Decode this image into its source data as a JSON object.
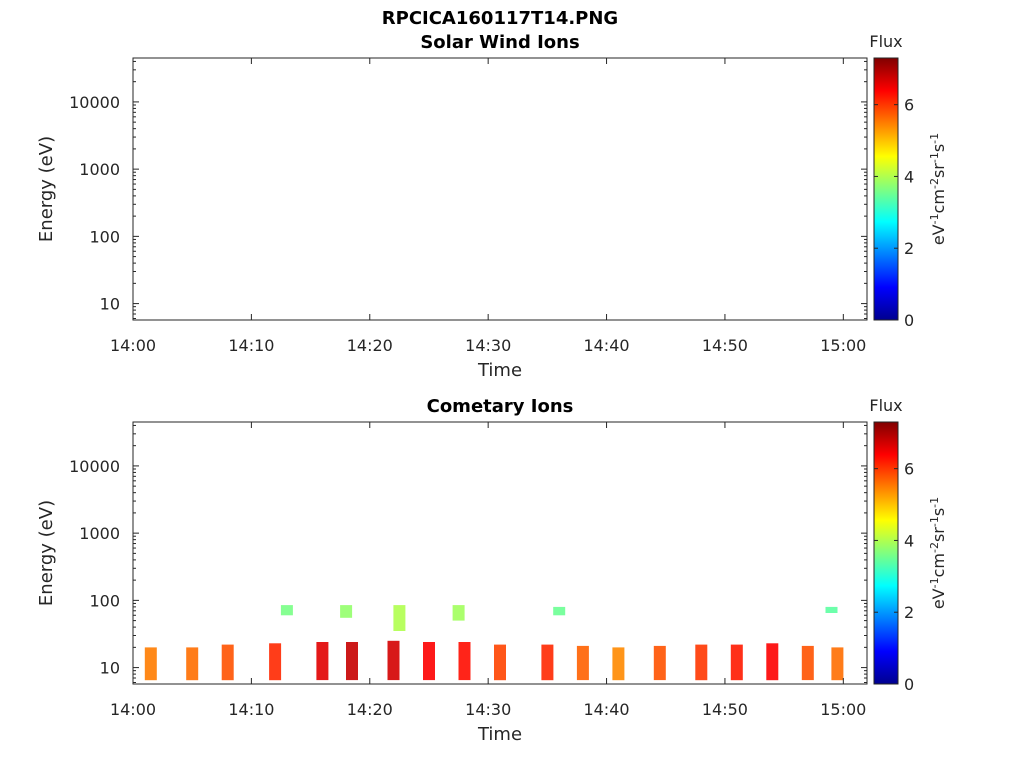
{
  "figure": {
    "title": "RPCICA160117T14.PNG"
  },
  "colors": {
    "low": "#00008f",
    "high": "#800000",
    "axis": "#262626"
  },
  "chart_data": [
    {
      "type": "heatmap",
      "title": "Solar Wind Ions",
      "xlabel": "Time",
      "ylabel": "Energy (eV)",
      "y_scale": "log",
      "xlim": [
        "14:00",
        "15:02"
      ],
      "ylim": [
        5.7,
        45000
      ],
      "x_ticks": [
        "14:00",
        "14:10",
        "14:20",
        "14:30",
        "14:40",
        "14:50",
        "15:00"
      ],
      "y_ticks": [
        "10",
        "100",
        "1000",
        "10000"
      ],
      "colorbar": {
        "title": "Flux",
        "label_parts": [
          "eV",
          "-1",
          "cm",
          "-2",
          "sr",
          "-1",
          "s",
          "-1"
        ],
        "ticks": [
          "0",
          "2",
          "4",
          "6"
        ],
        "range": [
          0,
          7.3
        ]
      },
      "observations": []
    },
    {
      "type": "heatmap",
      "title": "Cometary Ions",
      "xlabel": "Time",
      "ylabel": "Energy (eV)",
      "y_scale": "log",
      "xlim": [
        "14:00",
        "15:02"
      ],
      "ylim": [
        5.7,
        45000
      ],
      "x_ticks": [
        "14:00",
        "14:10",
        "14:20",
        "14:30",
        "14:40",
        "14:50",
        "15:00"
      ],
      "y_ticks": [
        "10",
        "100",
        "1000",
        "10000"
      ],
      "colorbar": {
        "title": "Flux",
        "label_parts": [
          "eV",
          "-1",
          "cm",
          "-2",
          "sr",
          "-1",
          "s",
          "-1"
        ],
        "ticks": [
          "0",
          "2",
          "4",
          "6"
        ],
        "range": [
          0,
          7.3
        ]
      },
      "observations": [
        {
          "time": "14:01:30",
          "energy_range": [
            6.5,
            20
          ],
          "flux": 5.5
        },
        {
          "time": "14:05:00",
          "energy_range": [
            6.5,
            20
          ],
          "flux": 5.6
        },
        {
          "time": "14:08:00",
          "energy_range": [
            6.5,
            22
          ],
          "flux": 5.8
        },
        {
          "time": "14:12:00",
          "energy_range": [
            6.5,
            23
          ],
          "flux": 6.1
        },
        {
          "time": "14:16:00",
          "energy_range": [
            6.5,
            24
          ],
          "flux": 6.6
        },
        {
          "time": "14:18:30",
          "energy_range": [
            6.5,
            24
          ],
          "flux": 6.8
        },
        {
          "time": "14:22:00",
          "energy_range": [
            6.5,
            25
          ],
          "flux": 6.7
        },
        {
          "time": "14:25:00",
          "energy_range": [
            6.5,
            24
          ],
          "flux": 6.4
        },
        {
          "time": "14:28:00",
          "energy_range": [
            6.5,
            24
          ],
          "flux": 6.3
        },
        {
          "time": "14:31:00",
          "energy_range": [
            6.5,
            22
          ],
          "flux": 5.9
        },
        {
          "time": "14:35:00",
          "energy_range": [
            6.5,
            22
          ],
          "flux": 6.1
        },
        {
          "time": "14:38:00",
          "energy_range": [
            6.5,
            21
          ],
          "flux": 5.7
        },
        {
          "time": "14:41:00",
          "energy_range": [
            6.5,
            20
          ],
          "flux": 5.4
        },
        {
          "time": "14:44:30",
          "energy_range": [
            6.5,
            21
          ],
          "flux": 5.8
        },
        {
          "time": "14:48:00",
          "energy_range": [
            6.5,
            22
          ],
          "flux": 6.0
        },
        {
          "time": "14:51:00",
          "energy_range": [
            6.5,
            22
          ],
          "flux": 6.2
        },
        {
          "time": "14:54:00",
          "energy_range": [
            6.5,
            23
          ],
          "flux": 6.4
        },
        {
          "time": "14:57:00",
          "energy_range": [
            6.5,
            21
          ],
          "flux": 5.8
        },
        {
          "time": "14:59:30",
          "energy_range": [
            6.5,
            20
          ],
          "flux": 5.6
        },
        {
          "time": "14:13:00",
          "energy_range": [
            60,
            85
          ],
          "flux": 3.6
        },
        {
          "time": "14:18:00",
          "energy_range": [
            55,
            85
          ],
          "flux": 3.8
        },
        {
          "time": "14:22:30",
          "energy_range": [
            35,
            85
          ],
          "flux": 4.0
        },
        {
          "time": "14:27:30",
          "energy_range": [
            50,
            85
          ],
          "flux": 3.9
        },
        {
          "time": "14:36:00",
          "energy_range": [
            60,
            80
          ],
          "flux": 3.5
        },
        {
          "time": "14:59:00",
          "energy_range": [
            65,
            80
          ],
          "flux": 3.4
        }
      ]
    }
  ]
}
